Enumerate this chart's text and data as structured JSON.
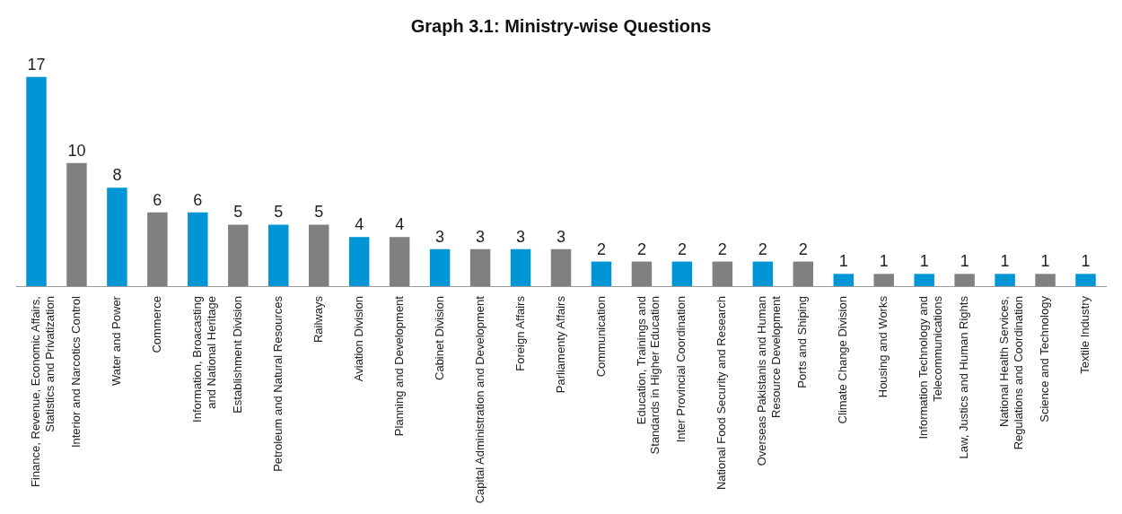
{
  "chart_data": {
    "type": "bar",
    "title": "Graph 3.1: Ministry-wise Questions",
    "categories": [
      "Finance, Revenue, Economic Affairs, Statistics and Privatization",
      "Interior and Narcotics Control",
      "Water and Power",
      "Commerce",
      "Information, Broacasting and National Heritage",
      "Establishment Division",
      "Petroleum and Natural Resources",
      "Railways",
      "Aviation Division",
      "Planning and Development",
      "Cabinet Division",
      "Capital Administration and Development",
      "Foreign Affairs",
      "Parliamenty Affairs",
      "Communication",
      "Education, Trainings and Standards in Higher Education",
      "Inter Provincial Coordination",
      "National Food Security and Research",
      "Overseas Pakistanis and Human Resource Development",
      "Ports and Shiping",
      "Climate Change Division",
      "Housing and Works",
      "Information Technology and Telecommunications",
      "Law, Justics and Human Rights",
      "National Health Services, Regulations and Coordination",
      "Science and Technology",
      "Textile Industry"
    ],
    "values": [
      17,
      10,
      8,
      6,
      6,
      5,
      5,
      5,
      4,
      4,
      3,
      3,
      3,
      3,
      2,
      2,
      2,
      2,
      2,
      2,
      1,
      1,
      1,
      1,
      1,
      1,
      1
    ],
    "colors": [
      "#0096d6",
      "#808080",
      "#0096d6",
      "#808080",
      "#0096d6",
      "#808080",
      "#0096d6",
      "#808080",
      "#0096d6",
      "#808080",
      "#0096d6",
      "#808080",
      "#0096d6",
      "#808080",
      "#0096d6",
      "#808080",
      "#0096d6",
      "#808080",
      "#0096d6",
      "#808080",
      "#0096d6",
      "#808080",
      "#0096d6",
      "#808080",
      "#0096d6",
      "#808080",
      "#0096d6"
    ],
    "data_labels": true,
    "tick_labels": "x",
    "grid": false,
    "legend": false
  }
}
